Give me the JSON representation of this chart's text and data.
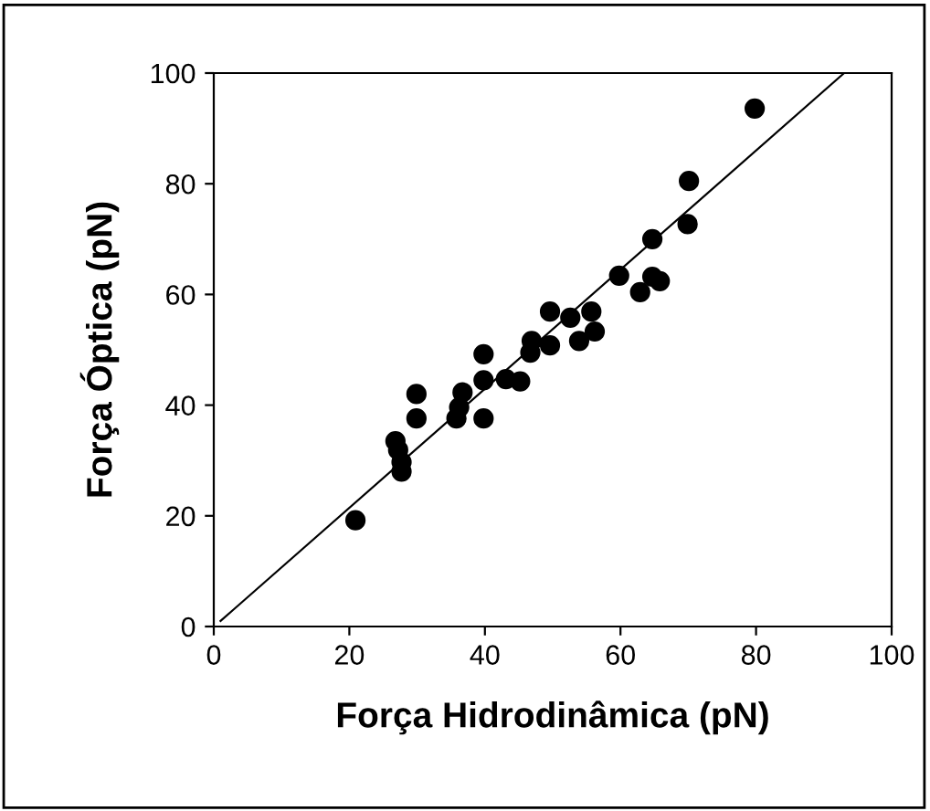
{
  "chart_data": {
    "type": "scatter",
    "xlabel": "Força Hidrodinâmica (pN)",
    "ylabel": "Força Óptica (pN)",
    "xlim": [
      0,
      100
    ],
    "ylim": [
      0,
      100
    ],
    "xticks": [
      0,
      20,
      40,
      60,
      80,
      100
    ],
    "yticks": [
      0,
      20,
      40,
      60,
      80,
      100
    ],
    "grid": false,
    "legend": false,
    "marker": "circle",
    "series": [
      {
        "color": "#000000",
        "x": [
          20.9,
          26.8,
          27.2,
          27.7,
          27.7,
          29.9,
          29.9,
          35.8,
          36.2,
          36.7,
          39.8,
          39.8,
          39.8,
          43.1,
          45.2,
          46.7,
          46.9,
          49.6,
          49.6,
          52.6,
          53.9,
          55.7,
          56.2,
          59.8,
          62.9,
          64.7,
          65.8,
          64.7,
          69.9,
          70.1,
          79.8
        ],
        "values": [
          19.2,
          33.5,
          31.9,
          29.7,
          28,
          42,
          37.6,
          37.6,
          39.6,
          42.3,
          49.2,
          44.5,
          37.6,
          44.7,
          44.3,
          49.5,
          51.6,
          50.8,
          56.9,
          55.8,
          51.6,
          56.9,
          53.3,
          63.4,
          60.4,
          63.2,
          62.4,
          70,
          72.7,
          80.5,
          93.6
        ]
      },
      {
        "type": "line",
        "color": "#000000",
        "x": [
          1,
          93
        ],
        "values": [
          1,
          100
        ],
        "marker": "none",
        "line_style": "solid"
      }
    ]
  }
}
